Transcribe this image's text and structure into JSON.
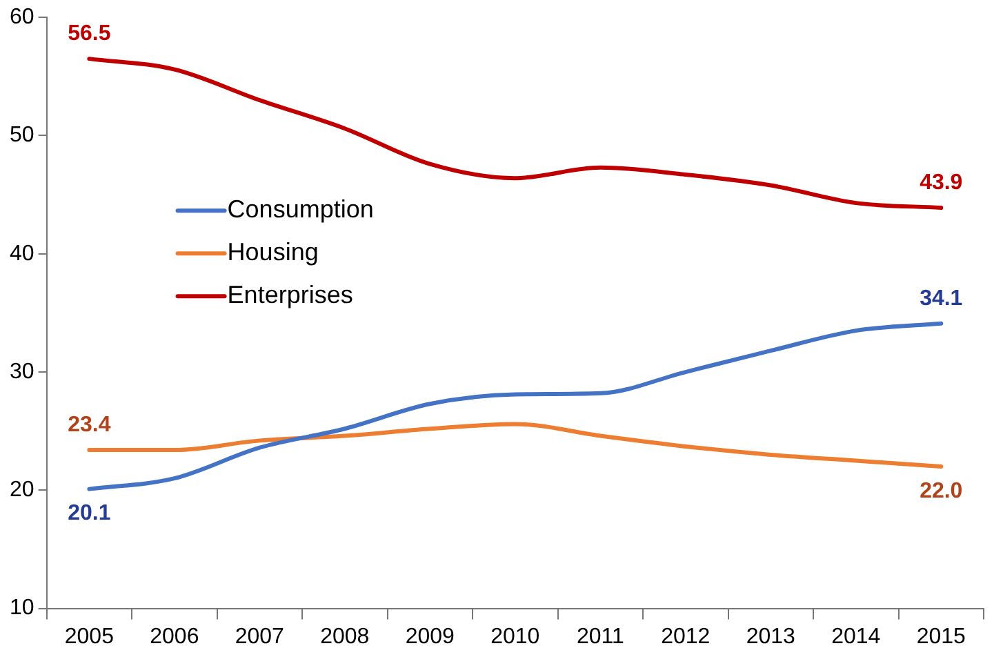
{
  "chart_data": {
    "type": "line",
    "categories": [
      "2005",
      "2006",
      "2007",
      "2008",
      "2009",
      "2010",
      "2011",
      "2012",
      "2013",
      "2014",
      "2015"
    ],
    "series": [
      {
        "name": "Consumption",
        "color": "#4472c4",
        "values": [
          20.1,
          21.0,
          23.6,
          25.2,
          27.3,
          28.1,
          28.2,
          30.0,
          31.8,
          33.5,
          34.1
        ],
        "value_labels": [
          "20.1",
          null,
          null,
          null,
          null,
          null,
          null,
          null,
          null,
          null,
          "34.1"
        ]
      },
      {
        "name": "Housing",
        "color": "#ed7d31",
        "values": [
          23.4,
          23.4,
          24.2,
          24.6,
          25.2,
          25.6,
          24.6,
          23.7,
          23.0,
          22.5,
          22.0
        ],
        "value_labels": [
          "23.4",
          null,
          null,
          null,
          null,
          null,
          null,
          null,
          null,
          null,
          "22.0"
        ]
      },
      {
        "name": "Enterprises",
        "color": "#c00000",
        "values": [
          56.5,
          55.6,
          53.0,
          50.6,
          47.6,
          46.4,
          47.3,
          46.7,
          45.8,
          44.3,
          43.9
        ],
        "value_labels": [
          "56.5",
          null,
          null,
          null,
          null,
          null,
          null,
          null,
          null,
          null,
          "43.9"
        ]
      }
    ],
    "ylim": [
      10,
      60
    ],
    "yticks": [
      10,
      20,
      30,
      40,
      50,
      60
    ],
    "grid": false,
    "legend": "left",
    "marker": "none",
    "line_style": "solid"
  }
}
